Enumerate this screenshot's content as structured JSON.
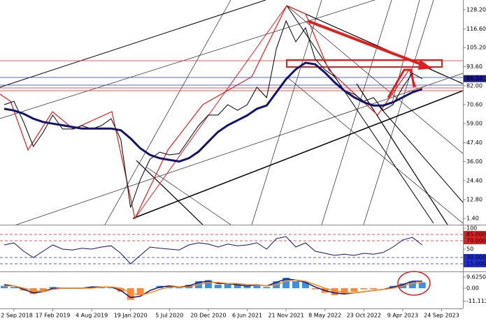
{
  "chart_data": [
    {
      "type": "line",
      "categories": [
        null,
        "2 Sep 2018",
        null,
        null,
        null,
        "17 Feb 2019",
        null,
        null,
        null,
        "4 Aug 2019",
        null,
        null,
        null,
        "19 Jan 2020",
        null,
        null,
        null,
        "5 Jul 2020",
        null,
        null,
        null,
        "20 Dec 2020",
        null,
        null,
        null,
        "6 Jun 2021",
        null,
        null,
        null,
        "21 Nov 2021",
        null,
        null,
        null,
        "8 May 2022",
        null,
        null,
        null,
        "23 Oct 2022",
        null,
        null,
        null,
        "9 Apr 2023",
        null,
        null,
        null,
        "24 Sep 2023",
        null,
        null
      ],
      "series": [
        {
          "color": "#000000",
          "values": [
            70.5,
            72.6,
            59.9,
            45.1,
            53.6,
            64.2,
            55.7,
            55.7,
            57.8,
            55.7,
            57.8,
            62.0,
            49.3,
            8.0,
            25.0,
            37.4,
            41.7,
            40.0,
            40.8,
            49.3,
            57.8,
            64.2,
            64.2,
            70.5,
            67.1,
            70.5,
            81.1,
            74.8,
            104.5,
            121.4,
            108.7,
            117.2,
            98.1,
            91.7,
            87.5,
            79.0,
            76.9,
            72.6,
            74.8,
            67.1,
            70.5,
            81.1,
            89.6,
            86.3,
            null,
            null,
            null,
            null
          ]
        },
        {
          "color": "#14146e",
          "values": [
            68,
            67,
            65,
            62,
            60,
            59,
            58,
            57,
            56,
            56,
            56,
            56,
            55,
            50,
            44,
            40,
            38,
            37,
            36,
            38,
            42,
            48,
            54,
            58,
            61,
            64,
            68,
            70,
            78,
            86,
            92,
            96,
            95,
            90,
            84,
            79,
            75,
            72,
            70,
            70,
            72,
            75,
            78,
            80,
            null,
            null,
            null,
            null
          ]
        }
      ],
      "ylim": [
        -2.4,
        134.1
      ],
      "yticks": [
        {
          "value": 128.2,
          "label": "128.20"
        },
        {
          "value": 116.6,
          "label": "116.60"
        },
        {
          "value": 105.2,
          "label": "105.20"
        },
        {
          "value": 93.6,
          "label": "93.60"
        },
        {
          "value": 82,
          "label": "82.00"
        },
        {
          "value": 70.6,
          "label": "70.60"
        },
        {
          "value": 59,
          "label": "59.00"
        },
        {
          "value": 47.4,
          "label": "47.40"
        },
        {
          "value": 36,
          "label": "36.00"
        },
        {
          "value": 24.4,
          "label": "24.40"
        },
        {
          "value": 12.8,
          "label": "12.80"
        },
        {
          "value": 1.4,
          "label": "1.40"
        }
      ],
      "price_marker": {
        "value": 86.34,
        "label": "86.34"
      }
    },
    {
      "type": "line",
      "series": [
        {
          "color": "#14146e",
          "values": [
            60,
            65,
            45,
            30,
            45,
            60,
            50,
            48,
            52,
            50,
            55,
            58,
            40,
            15,
            35,
            55,
            52,
            50,
            48,
            60,
            65,
            62,
            55,
            62,
            58,
            60,
            65,
            50,
            75,
            80,
            55,
            65,
            45,
            40,
            35,
            38,
            35,
            40,
            38,
            42,
            55,
            72,
            78,
            60,
            null,
            null,
            null,
            null
          ]
        }
      ],
      "ylim": [
        -1.7,
        106.7
      ],
      "yticks": [
        100,
        {
          "value": 85,
          "label": "85.0000",
          "color": "#e02020"
        },
        {
          "value": 70,
          "label": "70.0000",
          "color": "#e02020"
        },
        50,
        {
          "value": 30,
          "label": "30.0000",
          "color": "#2030d0"
        },
        {
          "value": 15,
          "label": "15.0000",
          "color": "#2030d0"
        }
      ]
    },
    {
      "type": "bar",
      "series": [
        {
          "type": "bar",
          "color": "#3d8fe0",
          "negative_color": "#ff8a3d",
          "values": [
            2,
            1,
            -2,
            -5,
            -3,
            1,
            0,
            0,
            0,
            1,
            1,
            1,
            -3,
            -10,
            -6,
            0,
            2,
            2,
            1,
            3,
            6,
            7,
            3,
            4,
            3,
            2,
            3,
            1,
            6,
            9,
            6,
            5,
            -1,
            -4,
            -6,
            -5,
            -3,
            -1,
            -1,
            0,
            2,
            4,
            6,
            5,
            null,
            null,
            null,
            null
          ]
        },
        {
          "type": "line",
          "color": "#14146e",
          "values": [
            3,
            2,
            -1,
            -4,
            -3,
            0,
            0,
            0,
            0,
            1,
            1,
            1,
            -2,
            -8,
            -7,
            -2,
            1,
            2,
            1,
            2,
            5,
            6,
            4,
            4,
            3,
            2,
            3,
            2,
            5,
            8,
            7,
            5,
            1,
            -2,
            -4,
            -5,
            -4,
            -3,
            -2,
            -1,
            1,
            3,
            6,
            6,
            null,
            null,
            null,
            null
          ]
        },
        {
          "type": "line",
          "color": "#ff8a1a",
          "values": [
            2,
            2,
            0,
            -2,
            -3,
            -1,
            0,
            0,
            0,
            0,
            1,
            1,
            0,
            -4,
            -6,
            -4,
            -1,
            1,
            1,
            1,
            3,
            5,
            5,
            4,
            4,
            3,
            3,
            2,
            3,
            6,
            7,
            6,
            3,
            0,
            -2,
            -4,
            -4,
            -3,
            -2,
            -1,
            0,
            2,
            4,
            5,
            null,
            null,
            null,
            null
          ]
        }
      ],
      "ylim": [
        -17.4,
        13.8
      ],
      "yticks": [
        {
          "value": 9.625,
          "label": "9.6250"
        },
        {
          "value": 0,
          "label": "0.00"
        },
        {
          "value": -11.113,
          "label": "-11.1130"
        }
      ]
    }
  ]
}
